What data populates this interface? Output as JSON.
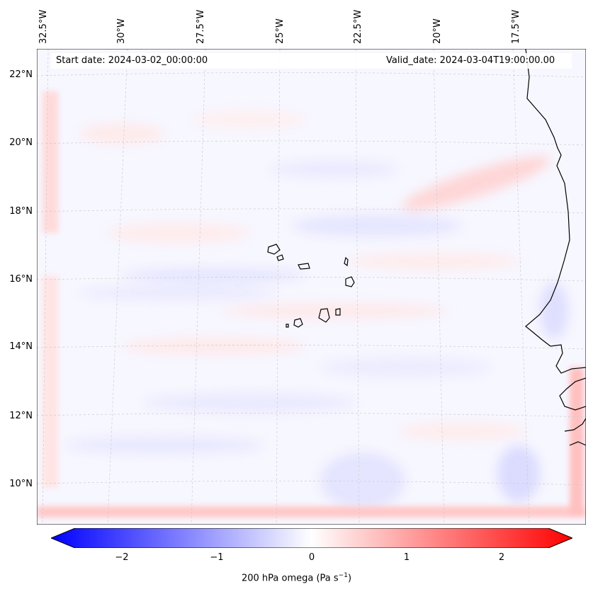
{
  "map": {
    "start_label": "Start date: 2024-03-02_00:00:00",
    "valid_label": "Valid_date: 2024-03-04T19:00:00.00",
    "lon_labels": [
      "32.5°W",
      "30°W",
      "27.5°W",
      "25°W",
      "22.5°W",
      "20°W",
      "17.5°W"
    ],
    "lat_labels": [
      "22°N",
      "20°N",
      "18°N",
      "16°N",
      "14°N",
      "12°N",
      "10°N"
    ],
    "islands": "Cape Verde Islands",
    "coast": "West African coastline"
  },
  "colorbar": {
    "title_text": "200 hPa omega (Pa s",
    "title_sup": "−1",
    "title_close": ")",
    "ticks": [
      "−2",
      "−1",
      "0",
      "1",
      "2"
    ],
    "range": [
      -2.7,
      2.7
    ],
    "colors": {
      "negative": "#0000ff",
      "zero": "#ffffff",
      "positive": "#ff0000"
    }
  }
}
